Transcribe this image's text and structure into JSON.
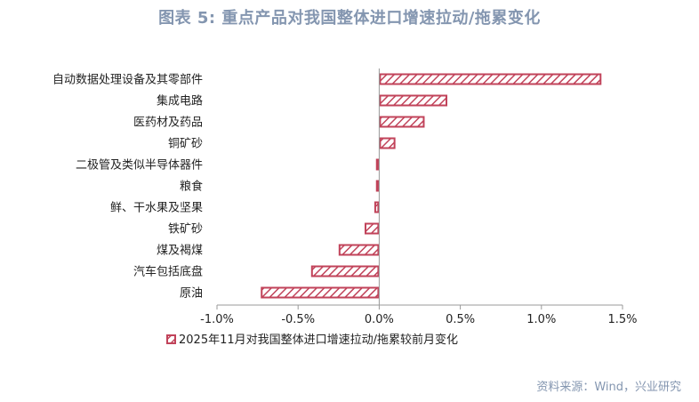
{
  "title": "图表 5:    重点产品对我国整体进口增速拉动/拖累变化",
  "source": "资料来源：Wind，兴业研究",
  "colors": {
    "bar": "#c1435a",
    "title": "#8496b0",
    "axis": "#999999"
  },
  "chart_data": {
    "type": "bar",
    "orientation": "horizontal",
    "categories": [
      "自动数据处理设备及其零部件",
      "集成电路",
      "医药材及药品",
      "铜矿砂",
      "二极管及类似半导体器件",
      "粮食",
      "鲜、干水果及坚果",
      "铁矿砂",
      "煤及褐煤",
      "汽车包括底盘",
      "原油"
    ],
    "series": [
      {
        "name": "2025年11月对我国整体进口增速拉动/拖累较前月变化",
        "values": [
          1.37,
          0.42,
          0.28,
          0.1,
          -0.02,
          -0.02,
          -0.03,
          -0.09,
          -0.25,
          -0.42,
          -0.73
        ]
      }
    ],
    "xlim": [
      -1.0,
      1.5
    ],
    "xticks": [
      "-1.0%",
      "-0.5%",
      "0.0%",
      "0.5%",
      "1.0%",
      "1.5%"
    ],
    "xtick_values": [
      -1.0,
      -0.5,
      0.0,
      0.5,
      1.0,
      1.5
    ],
    "legend": "bottom",
    "grid": false
  }
}
